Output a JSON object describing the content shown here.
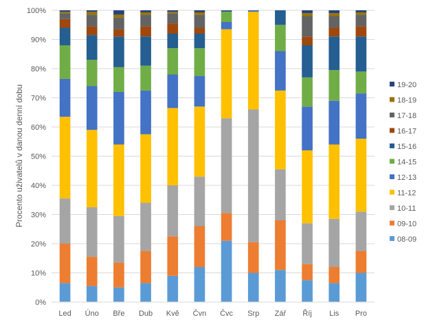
{
  "chart_data": {
    "type": "bar",
    "stacked": true,
    "percent_stacked": true,
    "ylabel": "Procento uživatelů v danou denní dobu",
    "xlabel": "",
    "ylim": [
      0,
      100
    ],
    "ytick_labels": [
      "0%",
      "10%",
      "20%",
      "30%",
      "40%",
      "50%",
      "60%",
      "70%",
      "80%",
      "90%",
      "100%"
    ],
    "grid": true,
    "legend_position": "right",
    "categories": [
      "Led",
      "Úno",
      "Bře",
      "Dub",
      "Kvě",
      "Čvn",
      "Čvc",
      "Srp",
      "Zář",
      "Říj",
      "Lis",
      "Pro"
    ],
    "series": [
      {
        "name": "08-09",
        "color": "#5b9bd5",
        "values": [
          6.5,
          5.5,
          5,
          6.5,
          9,
          12,
          21,
          10,
          11,
          7.5,
          6.5,
          10
        ]
      },
      {
        "name": "09-10",
        "color": "#ed7d31",
        "values": [
          13.5,
          10,
          8.5,
          11,
          13.5,
          14,
          9.5,
          10.5,
          17,
          5.5,
          5.5,
          7.5
        ]
      },
      {
        "name": "10-11",
        "color": "#a5a5a5",
        "values": [
          15.5,
          17,
          16,
          16.5,
          17.5,
          17,
          32.5,
          45.5,
          17.5,
          14,
          16.5,
          13.5
        ]
      },
      {
        "name": "11-12",
        "color": "#ffc000",
        "values": [
          28,
          26.5,
          24.5,
          23.5,
          26.5,
          24,
          30.5,
          33.5,
          27,
          25,
          25.5,
          25
        ]
      },
      {
        "name": "12-13",
        "color": "#4472c4",
        "values": [
          13,
          15,
          18,
          15,
          11.5,
          10.5,
          2.5,
          0.3,
          13.5,
          15,
          15,
          15.5
        ]
      },
      {
        "name": "14-15",
        "color": "#70ad47",
        "values": [
          11.5,
          9,
          8.5,
          8.5,
          9,
          9.5,
          3.5,
          0,
          9,
          10,
          10.5,
          7.5
        ]
      },
      {
        "name": "15-16",
        "color": "#255e91",
        "values": [
          6,
          8.5,
          10.5,
          10,
          5,
          5,
          0.5,
          0.2,
          5,
          11,
          11.5,
          12
        ]
      },
      {
        "name": "16-17",
        "color": "#9e480e",
        "values": [
          3,
          3,
          2.5,
          3.5,
          3.5,
          2,
          0,
          0,
          0,
          3,
          3,
          3.5
        ]
      },
      {
        "name": "17-18",
        "color": "#636363",
        "values": [
          2,
          4,
          4,
          4,
          3.5,
          4.5,
          0,
          0,
          0,
          7,
          4,
          4
        ]
      },
      {
        "name": "18-19",
        "color": "#997300",
        "values": [
          0.5,
          1,
          1,
          0.8,
          0.5,
          0.8,
          0,
          0,
          0,
          1,
          1,
          0.8
        ]
      },
      {
        "name": "19-20",
        "color": "#264478",
        "values": [
          0.5,
          0.5,
          1.5,
          0.7,
          0.5,
          0.7,
          0,
          0,
          0,
          1,
          1,
          0.7
        ]
      }
    ]
  }
}
